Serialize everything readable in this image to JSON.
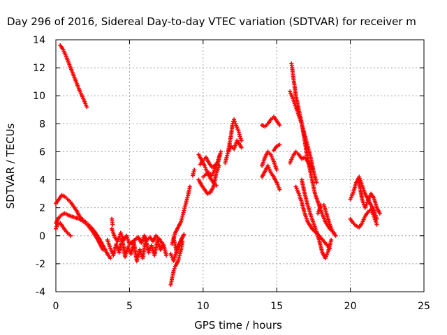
{
  "chart_data": {
    "type": "scatter",
    "title": "Day 296 of 2016, Sidereal Day-to-day VTEC variation (SDTVAR) for receiver m",
    "xlabel": "GPS time / hours",
    "ylabel": "SDTVAR / TECUs",
    "xlim": [
      0,
      25
    ],
    "ylim": [
      -4,
      14
    ],
    "xticks": [
      "0",
      "5",
      "10",
      "15",
      "20",
      "25"
    ],
    "yticks": [
      "-4",
      "-2",
      "0",
      "2",
      "4",
      "6",
      "8",
      "10",
      "12",
      "14"
    ],
    "grid": true,
    "legend": "none",
    "marker": "plus",
    "color": "#ff0000",
    "series": [
      {
        "x": [
          0.3,
          0.5,
          0.7,
          1.0,
          1.3,
          1.6,
          1.9,
          2.1
        ],
        "y": [
          13.6,
          13.3,
          12.8,
          12.0,
          11.2,
          10.4,
          9.7,
          9.2
        ]
      },
      {
        "x": [
          0.0,
          0.2,
          0.4,
          0.6,
          0.8,
          1.0,
          1.2,
          1.4,
          1.6,
          1.8,
          2.0,
          2.2,
          2.4,
          2.7,
          3.0,
          3.3,
          3.5,
          3.7
        ],
        "y": [
          2.3,
          2.6,
          2.9,
          2.8,
          2.6,
          2.4,
          2.1,
          1.8,
          1.4,
          1.2,
          1.0,
          0.8,
          0.6,
          0.2,
          -0.3,
          -0.9,
          -1.3,
          -1.6
        ]
      },
      {
        "x": [
          0.0,
          0.2,
          0.4,
          0.6,
          0.8,
          1.0,
          1.3,
          1.6,
          1.9,
          2.2,
          2.5,
          2.8,
          3.0,
          3.2
        ],
        "y": [
          0.9,
          1.3,
          1.5,
          1.6,
          1.5,
          1.4,
          1.3,
          1.2,
          1.0,
          0.7,
          0.3,
          -0.2,
          -0.6,
          -1.0
        ]
      },
      {
        "x": [
          0.0,
          0.1,
          0.3,
          0.5,
          0.7,
          1.0
        ],
        "y": [
          0.5,
          0.8,
          0.9,
          0.6,
          0.3,
          0.0
        ]
      },
      {
        "x": [
          3.5,
          3.7,
          3.9,
          4.1,
          4.3,
          4.5,
          4.7,
          4.9,
          5.1,
          5.3,
          5.5,
          5.7,
          5.9,
          6.1,
          6.3,
          6.5,
          6.7,
          6.9,
          7.1,
          7.3,
          7.5
        ],
        "y": [
          -0.3,
          -0.9,
          -1.4,
          -0.6,
          -1.2,
          -0.2,
          -1.5,
          -0.8,
          -1.3,
          -0.5,
          -1.8,
          -1.0,
          -1.6,
          -0.2,
          -1.2,
          -0.7,
          -1.4,
          -0.3,
          -1.0,
          -0.6,
          -1.4
        ]
      },
      {
        "x": [
          3.8,
          4.0,
          4.2,
          4.4,
          4.6,
          4.8,
          5.0,
          5.6,
          5.8,
          6.0,
          6.2,
          6.4,
          6.6,
          6.8,
          7.0,
          7.2
        ],
        "y": [
          0.5,
          -0.1,
          -0.4,
          0.2,
          -0.3,
          0.0,
          -0.6,
          -0.1,
          -0.5,
          0.0,
          -0.3,
          -0.1,
          -0.4,
          0.0,
          -0.2,
          -0.5
        ]
      },
      {
        "x": [
          3.8,
          3.85
        ],
        "y": [
          1.2,
          0.8
        ]
      },
      {
        "x": [
          7.8,
          7.9,
          8.0,
          8.1,
          8.2,
          8.3,
          8.4,
          8.5,
          8.6
        ],
        "y": [
          -3.5,
          -3.0,
          -2.5,
          -2.2,
          -2.0,
          -1.8,
          -1.4,
          -1.0,
          -0.4
        ]
      },
      {
        "x": [
          7.9,
          8.1,
          8.3,
          8.5,
          8.6,
          8.7,
          8.8,
          8.9,
          9.0,
          9.1
        ],
        "y": [
          -0.6,
          0.2,
          0.6,
          1.0,
          1.4,
          1.8,
          2.2,
          2.6,
          3.0,
          3.5
        ]
      },
      {
        "x": [
          7.8,
          8.0,
          8.2,
          8.4,
          8.6
        ],
        "y": [
          -1.3,
          -1.8,
          -1.1,
          -0.6,
          -0.1
        ]
      },
      {
        "x": [
          8.0,
          8.1,
          8.2,
          8.3,
          8.5,
          8.7
        ],
        "y": [
          -0.2,
          -0.6,
          -1.2,
          -0.8,
          -0.3,
          0.1
        ]
      },
      {
        "x": [
          9.3,
          9.4
        ],
        "y": [
          4.3,
          4.7
        ]
      },
      {
        "x": [
          9.7,
          9.9,
          10.1,
          10.3,
          10.5,
          10.7,
          10.9
        ],
        "y": [
          5.8,
          5.4,
          5.0,
          4.5,
          4.1,
          3.8,
          3.6
        ]
      },
      {
        "x": [
          9.7,
          9.9,
          10.1,
          10.3,
          10.5,
          10.7,
          10.9,
          11.1
        ],
        "y": [
          4.0,
          3.6,
          3.3,
          3.0,
          3.1,
          3.5,
          4.5,
          5.0
        ]
      },
      {
        "x": [
          9.8,
          10.0,
          10.2,
          10.4,
          10.6,
          10.8,
          11.0,
          11.1
        ],
        "y": [
          5.1,
          5.4,
          5.6,
          5.2,
          4.9,
          5.0,
          5.3,
          5.7
        ]
      },
      {
        "x": [
          10.0,
          10.2,
          10.4,
          10.6,
          10.8,
          11.0,
          11.2
        ],
        "y": [
          4.2,
          4.4,
          4.5,
          4.3,
          4.8,
          5.2,
          6.0
        ]
      },
      {
        "x": [
          11.5,
          11.6,
          11.7,
          11.8,
          11.9,
          12.0,
          12.1,
          12.2,
          12.4,
          12.5,
          12.6
        ],
        "y": [
          5.2,
          5.6,
          6.0,
          6.6,
          7.2,
          8.0,
          8.3,
          8.0,
          7.5,
          7.1,
          6.8
        ]
      },
      {
        "x": [
          11.7,
          11.9,
          12.1,
          12.3,
          12.5,
          12.6
        ],
        "y": [
          6.0,
          6.4,
          6.2,
          6.8,
          6.5,
          6.3
        ]
      },
      {
        "x": [
          14.0,
          14.2,
          14.4,
          14.6,
          14.8,
          15.0,
          15.2
        ],
        "y": [
          7.9,
          7.8,
          8.0,
          8.3,
          8.5,
          8.2,
          7.9
        ]
      },
      {
        "x": [
          14.0,
          14.2,
          14.4,
          14.6,
          14.8,
          15.0
        ],
        "y": [
          5.0,
          5.6,
          6.0,
          5.8,
          5.3,
          4.7
        ]
      },
      {
        "x": [
          14.0,
          14.2,
          14.4,
          14.6,
          14.8,
          15.0,
          15.2
        ],
        "y": [
          4.2,
          4.6,
          5.0,
          4.5,
          4.2,
          3.8,
          3.3
        ]
      },
      {
        "x": [
          14.8,
          15.0,
          15.2
        ],
        "y": [
          6.1,
          6.4,
          6.5
        ]
      },
      {
        "x": [
          16.0,
          16.05,
          16.1,
          16.2,
          16.3,
          16.5,
          16.7,
          16.9,
          17.1,
          17.3,
          17.6,
          18.0,
          18.3,
          18.6,
          18.9
        ],
        "y": [
          12.3,
          12.0,
          11.5,
          10.8,
          10.0,
          9.0,
          8.0,
          6.8,
          5.5,
          4.5,
          3.0,
          1.8,
          1.0,
          0.5,
          0.2
        ]
      },
      {
        "x": [
          15.9,
          16.1,
          16.3,
          16.5,
          16.7,
          16.9,
          17.1,
          17.3,
          17.5,
          17.7
        ],
        "y": [
          10.3,
          9.8,
          9.2,
          8.6,
          8.0,
          7.2,
          6.4,
          5.6,
          4.6,
          3.8
        ]
      },
      {
        "x": [
          15.9,
          16.1,
          16.3,
          16.5,
          16.7,
          16.9,
          17.1,
          17.4
        ],
        "y": [
          5.2,
          5.7,
          6.0,
          5.8,
          5.5,
          5.6,
          5.3,
          4.8
        ]
      },
      {
        "x": [
          16.3,
          16.5,
          16.7,
          16.9,
          17.1,
          17.4,
          17.8,
          18.2,
          18.6
        ],
        "y": [
          3.5,
          3.0,
          2.4,
          1.6,
          1.0,
          0.5,
          0.1,
          -0.4,
          -0.9
        ]
      },
      {
        "x": [
          16.7,
          16.9,
          17.1,
          17.3,
          17.5,
          17.7,
          17.9,
          18.1,
          18.3,
          18.5,
          18.7
        ],
        "y": [
          4.0,
          3.0,
          2.2,
          1.5,
          0.9,
          0.3,
          -0.4,
          -1.2,
          -1.6,
          -1.1,
          -0.3
        ]
      },
      {
        "x": [
          17.8,
          18.0,
          18.2,
          18.4,
          18.6,
          18.8,
          19.0
        ],
        "y": [
          1.6,
          2.2,
          2.2,
          1.5,
          0.8,
          0.3,
          0.0
        ]
      },
      {
        "x": [
          20.0,
          20.2,
          20.4,
          20.6,
          20.8,
          21.0,
          21.2,
          21.4,
          21.6,
          21.8
        ],
        "y": [
          2.6,
          3.1,
          3.8,
          4.2,
          3.6,
          3.0,
          2.6,
          2.2,
          1.8,
          1.2
        ]
      },
      {
        "x": [
          20.0,
          20.2,
          20.4,
          20.6,
          20.8,
          21.0,
          21.2,
          21.4,
          21.6,
          21.8
        ],
        "y": [
          1.2,
          0.9,
          0.7,
          0.6,
          0.9,
          1.4,
          1.7,
          1.9,
          1.4,
          0.8
        ]
      },
      {
        "x": [
          20.6,
          20.8,
          21.0,
          21.2,
          21.4,
          21.6,
          21.8,
          22.0
        ],
        "y": [
          3.8,
          2.6,
          2.0,
          2.5,
          3.0,
          2.7,
          2.0,
          1.6
        ]
      }
    ]
  }
}
